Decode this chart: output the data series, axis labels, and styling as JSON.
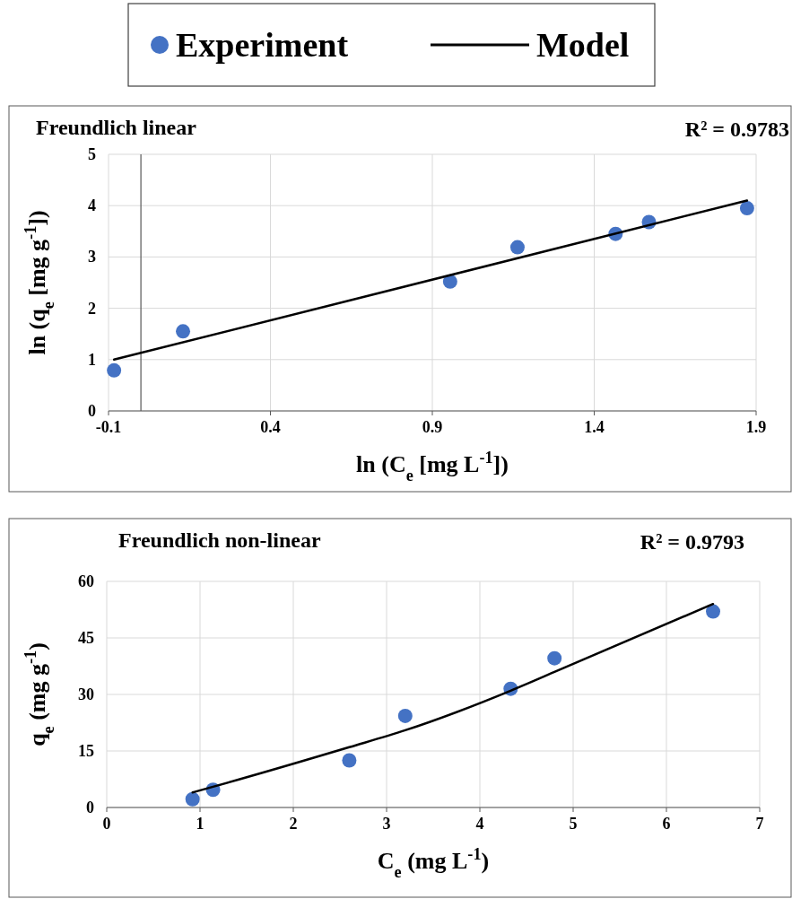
{
  "chart_data": [
    {
      "type": "scatter",
      "title": "Freundlich linear",
      "xlabel": "ln (C$_{e}$ [mg L$^{-1}$])",
      "ylabel": "ln (q$_{e}$ [mg g$^{-1}$])",
      "annotations": [
        "R² = 0.9783"
      ],
      "series": [
        {
          "name": "Experiment",
          "color": "#4472c4",
          "marker": "circle",
          "x": [
            -0.083,
            0.13,
            0.955,
            1.163,
            1.466,
            1.569,
            1.872
          ],
          "values": [
            0.79,
            1.55,
            2.52,
            3.19,
            3.45,
            3.68,
            3.95
          ]
        },
        {
          "name": "Model",
          "type": "line",
          "color": "#000000",
          "marker": "none",
          "x": [
            -0.083,
            1.872
          ],
          "values": [
            1.0,
            4.1
          ]
        }
      ],
      "xlim": [
        -0.1,
        1.9
      ],
      "xticks": [
        -0.1,
        0.4,
        0.9,
        1.4,
        1.9
      ],
      "ylim": [
        0,
        5
      ],
      "yticks": [
        0,
        1,
        2,
        3,
        4,
        5
      ],
      "grid": true,
      "legend": "top",
      "ref_lines": [
        {
          "axis": "x",
          "value": 0,
          "color": "#595959"
        }
      ]
    },
    {
      "type": "scatter",
      "title": "Freundlich non-linear",
      "xlabel": "C$_{e}$ (mg L$^{-1}$)",
      "ylabel": "q$_{e}$ (mg g$^{-1}$)",
      "annotations": [
        "R² = 0.9793"
      ],
      "series": [
        {
          "color": "#4472c4",
          "marker": "circle",
          "x": [
            0.92,
            1.14,
            2.6,
            3.2,
            4.33,
            4.8,
            6.5
          ],
          "values": [
            2.2,
            4.7,
            12.5,
            24.3,
            31.5,
            39.6,
            52
          ]
        },
        {
          "type": "line",
          "color": "#000000",
          "marker": "none",
          "x": [
            0.92,
            1.14,
            2.6,
            3.2,
            4.33,
            4.8,
            6.5
          ],
          "values": [
            4,
            5.5,
            16,
            20.5,
            31,
            36,
            54
          ]
        }
      ],
      "xlim": [
        0,
        7
      ],
      "xticks": [
        0,
        1,
        2,
        3,
        4,
        5,
        6,
        7
      ],
      "ylim": [
        0,
        60
      ],
      "yticks": [
        0,
        15,
        30,
        45,
        60
      ],
      "grid": true
    }
  ]
}
